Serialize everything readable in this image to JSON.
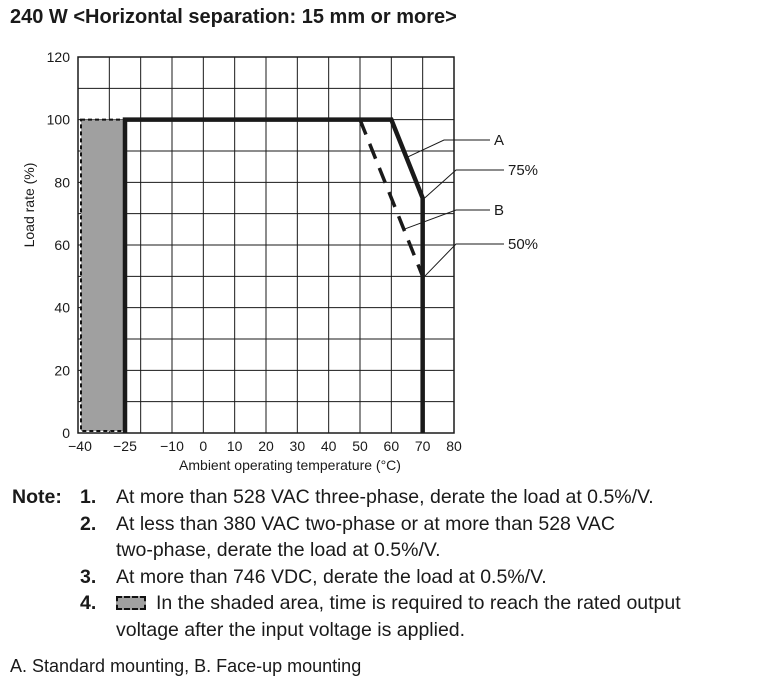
{
  "chart_data": {
    "type": "line",
    "title": "240 W <Horizontal separation: 15 mm or more>",
    "xlabel": "Ambient operating temperature (°C)",
    "ylabel": "Load rate (%)",
    "xlim": [
      -40,
      80
    ],
    "ylim": [
      0,
      120
    ],
    "x_ticks": [
      -40,
      -25,
      -10,
      0,
      10,
      20,
      30,
      40,
      50,
      60,
      70,
      80
    ],
    "x_tick_labels": [
      "−40",
      "−25",
      "−10",
      "0",
      "10",
      "20",
      "30",
      "40",
      "50",
      "60",
      "70",
      "80"
    ],
    "y_ticks": [
      0,
      20,
      40,
      60,
      80,
      100,
      120
    ],
    "y_tick_labels": [
      "0",
      "20",
      "40",
      "60",
      "80",
      "100",
      "120"
    ],
    "grid": true,
    "series": [
      {
        "name": "A",
        "style": "solid",
        "color": "#1a1a1a",
        "x": [
          -25,
          -25,
          60,
          70,
          70
        ],
        "y": [
          0,
          100,
          100,
          75,
          0
        ]
      },
      {
        "name": "B",
        "style": "dashed",
        "color": "#1a1a1a",
        "x": [
          50,
          70,
          70
        ],
        "y": [
          100,
          50,
          0
        ]
      }
    ],
    "shaded_region": {
      "x": [
        -40,
        -25
      ],
      "y": [
        0,
        100
      ],
      "color": "#a0a0a0",
      "border": "dashed"
    },
    "callouts": [
      "A",
      "75%",
      "B",
      "50%"
    ]
  },
  "notes": {
    "head": "Note:",
    "items": [
      {
        "num": "1.",
        "lines": [
          "At more than 528 VAC three-phase, derate the load at 0.5%/V."
        ]
      },
      {
        "num": "2.",
        "lines": [
          "At less than 380 VAC two-phase or at more than 528 VAC",
          "two-phase, derate the load at 0.5%/V."
        ]
      },
      {
        "num": "3.",
        "lines": [
          "At more than 746 VDC, derate the load at 0.5%/V."
        ]
      },
      {
        "num": "4.",
        "lines": [
          "In the shaded area, time is required to reach the rated output",
          "voltage after the input voltage is applied."
        ]
      }
    ]
  },
  "legend_text": "A. Standard mounting, B. Face-up mounting"
}
